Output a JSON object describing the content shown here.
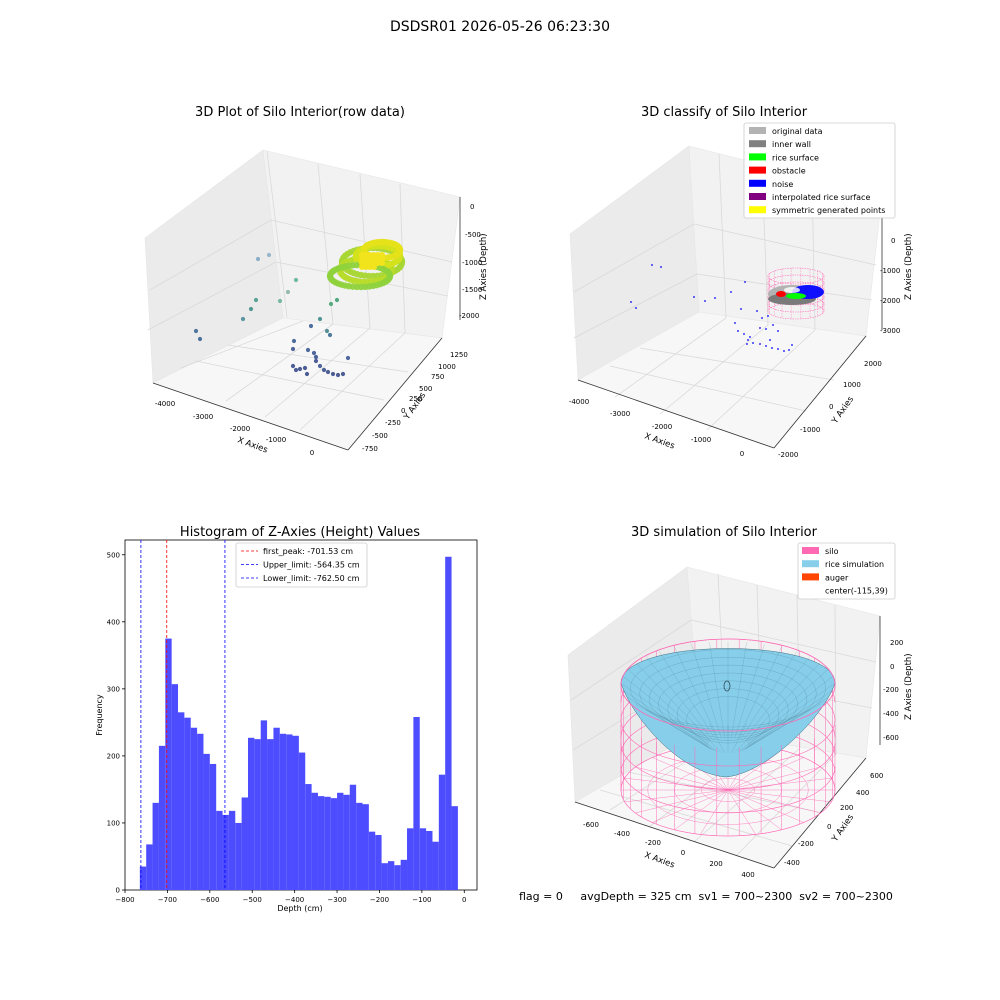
{
  "suptitle": "DSDSR01 2026-05-26 06:23:30",
  "footer": "flag = 0     avgDepth = 325 cm  sv1 = 700~2300  sv2 = 700~2300",
  "colors": {
    "hist_bar": "#4d4dff",
    "first_peak": "#ff0000",
    "limits": "#0000ff",
    "silo": "#ff69b4",
    "rice_simulation": "#87ceeb",
    "auger": "#ff4500",
    "pane": "#f2f2f2"
  },
  "chart_data": [
    {
      "type": "scatter",
      "subtype": "3d",
      "title": "3D Plot of Silo Interior(row data)",
      "xlabel": "X Axies",
      "ylabel": "Y Axies",
      "zlabel": "Z Axies (Depth)",
      "xticks": [
        "-4000",
        "-3000",
        "-2000",
        "-1000",
        "0"
      ],
      "yticks": [
        "-750",
        "-500",
        "-250",
        "0",
        "250",
        "500",
        "750",
        "1000",
        "1250"
      ],
      "zticks": [
        "0",
        "-500",
        "-1000",
        "-1500",
        "-2000"
      ],
      "colormap": "viridis"
    },
    {
      "type": "scatter",
      "subtype": "3d",
      "title": "3D classify of Silo Interior",
      "xlabel": "X Axies",
      "ylabel": "Y Axies",
      "zlabel": "Z Axies (Depth)",
      "xticks": [
        "-4000",
        "-3000",
        "-2000",
        "-1000",
        "0"
      ],
      "yticks": [
        "-2000",
        "-1000",
        "0",
        "1000",
        "2000"
      ],
      "zticks": [
        "0",
        "-1000",
        "-2000",
        "-3000"
      ],
      "legend_position": "top-right",
      "legend": [
        {
          "label": "original data",
          "color": "#b3b3b3"
        },
        {
          "label": "inner wall",
          "color": "#808080"
        },
        {
          "label": "rice surface",
          "color": "#00ff00"
        },
        {
          "label": "obstacle",
          "color": "#ff0000"
        },
        {
          "label": "noise",
          "color": "#0000ff"
        },
        {
          "label": "interpolated rice surface",
          "color": "#800080"
        },
        {
          "label": "symmetric generated points",
          "color": "#ffff00"
        }
      ]
    },
    {
      "type": "bar",
      "subtype": "histogram",
      "title": "Histogram of Z-Axies (Height) Values",
      "xlabel": "Depth (cm)",
      "ylabel": "Frequency",
      "xlim": [
        -800,
        30
      ],
      "ylim": [
        0,
        522
      ],
      "xticks": [
        -800,
        -700,
        -600,
        -500,
        -400,
        -300,
        -200,
        -100,
        0
      ],
      "yticks": [
        0,
        100,
        200,
        300,
        400,
        500
      ],
      "bin_width": 15,
      "bin_start": -765,
      "values": [
        35,
        68,
        130,
        215,
        375,
        307,
        265,
        257,
        242,
        233,
        203,
        188,
        118,
        112,
        118,
        100,
        138,
        227,
        225,
        253,
        225,
        242,
        233,
        232,
        230,
        205,
        158,
        145,
        140,
        139,
        137,
        145,
        142,
        157,
        130,
        128,
        87,
        82,
        40,
        43,
        37,
        45,
        92,
        258,
        92,
        88,
        72,
        172,
        497,
        125
      ],
      "reference_lines": [
        {
          "label": "first_peak: -701.53 cm",
          "x": -701.53,
          "color": "#ff0000"
        },
        {
          "label": "Upper_limit: -564.35 cm",
          "x": -564.35,
          "color": "#0000ff"
        },
        {
          "label": "Lower_limit: -762.50 cm",
          "x": -762.5,
          "color": "#0000ff"
        }
      ],
      "legend_position": "top-center"
    },
    {
      "type": "area",
      "subtype": "3d-surface",
      "title": "3D simulation of Silo Interior",
      "xlabel": "X Axies",
      "ylabel": "Y Axies",
      "zlabel": "Z Axies (Depth)",
      "xticks": [
        "-600",
        "-400",
        "-200",
        "0",
        "200",
        "400"
      ],
      "yticks": [
        "-400",
        "-200",
        "0",
        "200",
        "400",
        "600"
      ],
      "zticks": [
        "200",
        "0",
        "-200",
        "-400",
        "-600"
      ],
      "legend_position": "top-right",
      "legend": [
        {
          "label": "silo",
          "color": "#ff69b4"
        },
        {
          "label": "rice simulation",
          "color": "#87ceeb"
        },
        {
          "label": "auger",
          "color": "#ff4500"
        },
        {
          "label": "center(-115,39)",
          "color": ""
        }
      ]
    }
  ]
}
